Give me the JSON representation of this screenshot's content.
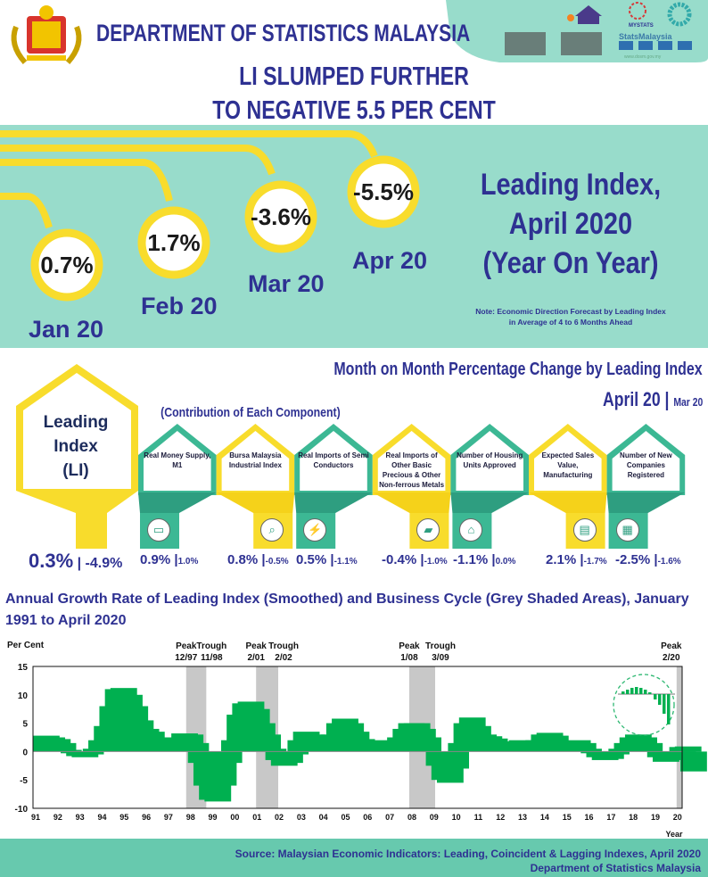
{
  "header": {
    "org": "DEPARTMENT OF STATISTICS MALAYSIA",
    "headline_1": "LI SLUMPED FURTHER",
    "headline_2": "TO NEGATIVE 5.5 PER CENT",
    "logos": [
      "malaysia-coat-of-arms",
      "census-2020",
      "mystats-day",
      "sdg",
      "statsmalaysia-social-media",
      "qr-codes"
    ],
    "website": "www.dosm.gov.my"
  },
  "yoy": {
    "title_lines": [
      "Leading Index,",
      "April 2020",
      "(Year On Year)"
    ],
    "note": "Note: Economic Direction Forecast by Leading Index in Average of 4 to 6 Months Ahead",
    "months": [
      {
        "label": "Jan 20",
        "value": "0.7%"
      },
      {
        "label": "Feb 20",
        "value": "1.7%"
      },
      {
        "label": "Mar 20",
        "value": "-3.6%"
      },
      {
        "label": "Apr 20",
        "value": "-5.5%"
      }
    ]
  },
  "mom": {
    "title": "Month on Month Percentage Change by Leading Index",
    "current": "April 20",
    "previous": "Mar 20",
    "contribution_label": "(Contribution of Each Component)",
    "li": {
      "label_lines": [
        "Leading",
        "Index",
        "(LI)"
      ],
      "current": "0.3%",
      "previous": "-4.9%"
    },
    "components": [
      {
        "label": "Real Money Supply, M1",
        "current": "0.9%",
        "previous": "1.0%",
        "icon": "wallet-icon",
        "color": "teal"
      },
      {
        "label": "Bursa Malaysia Industrial Index",
        "current": "0.8%",
        "previous": "-0.5%",
        "icon": "magnifier-chart-icon",
        "color": "yellow"
      },
      {
        "label": "Real Imports of Semi Conductors",
        "current": "0.5%",
        "previous": "-1.1%",
        "icon": "chip-icon",
        "color": "teal"
      },
      {
        "label": "Real Imports of Other Basic Precious & Other Non-ferrous Metals",
        "current": "-0.4%",
        "previous": "-1.0%",
        "icon": "metal-bar-icon",
        "color": "yellow"
      },
      {
        "label": "Number of Housing Units Approved",
        "current": "-1.1%",
        "previous": "0.0%",
        "icon": "house-icon",
        "color": "teal"
      },
      {
        "label": "Expected Sales Value, Manufacturing",
        "current": "2.1%",
        "previous": "-1.7%",
        "icon": "presentation-icon",
        "color": "yellow"
      },
      {
        "label": "Number of New Companies Registered",
        "current": "-2.5%",
        "previous": "-1.6%",
        "icon": "building-icon",
        "color": "teal"
      }
    ]
  },
  "chart_data": {
    "type": "bar",
    "title": "Annual Growth Rate of Leading Index (Smoothed) and Business Cycle (Grey Shaded Areas), January 1991 to April 2020",
    "ylabel": "Per Cent",
    "xlabel": "Year",
    "ylim": [
      -10,
      15
    ],
    "yticks": [
      15,
      10,
      5,
      0,
      -5,
      -10
    ],
    "xticks": [
      "91",
      "92",
      "93",
      "94",
      "95",
      "96",
      "97",
      "98",
      "99",
      "00",
      "01",
      "02",
      "03",
      "04",
      "05",
      "06",
      "07",
      "08",
      "09",
      "10",
      "11",
      "12",
      "13",
      "14",
      "15",
      "16",
      "17",
      "18",
      "19",
      "20"
    ],
    "grid": false,
    "frequency": "quarterly (approx. read from monthly bars)",
    "values_by_year": {
      "1991": [
        2.8,
        2.5,
        2.2,
        1.5
      ],
      "1992": [
        0.3,
        -0.3,
        -0.8,
        -1.0
      ],
      "1993": [
        -0.5,
        0.5,
        2.0,
        4.5
      ],
      "1994": [
        8.0,
        11.0,
        11.2,
        10.0
      ],
      "1995": [
        8.0,
        5.5,
        4.0,
        3.5
      ],
      "1996": [
        2.5,
        2.5,
        2.5,
        2.3
      ],
      "1997": [
        2.5,
        3.2,
        3.0,
        1.5
      ],
      "1998": [
        -2.0,
        -6.0,
        -8.5,
        -8.8
      ],
      "1999": [
        -6.0,
        -2.0,
        2.0,
        6.5
      ],
      "2000": [
        8.5,
        8.8,
        7.5,
        5.0
      ],
      "2001": [
        3.0,
        0.5,
        -1.5,
        -2.5
      ],
      "2002": [
        -2.0,
        -0.5,
        2.0,
        3.5
      ],
      "2003": [
        3.0,
        1.5,
        0.7,
        1.0
      ],
      "2004": [
        3.0,
        5.0,
        5.8,
        5.0
      ],
      "2005": [
        3.5,
        2.2,
        1.7,
        1.8
      ],
      "2006": [
        2.0,
        1.8,
        1.5,
        1.6
      ],
      "2007": [
        2.5,
        4.0,
        5.0,
        5.0
      ],
      "2008": [
        4.0,
        2.5,
        0.0,
        -2.5
      ],
      "2009": [
        -5.0,
        -5.5,
        -3.0,
        1.5
      ],
      "2010": [
        5.0,
        6.0,
        4.5,
        3.0
      ],
      "2011": [
        2.7,
        2.3,
        1.5,
        1.3
      ],
      "2012": [
        1.2,
        1.8,
        2.0,
        1.5
      ],
      "2013": [
        1.2,
        2.0,
        3.0,
        3.3
      ],
      "2014": [
        2.8,
        1.5,
        1.3,
        1.8
      ],
      "2015": [
        2.0,
        1.5,
        0.5,
        -0.3
      ],
      "2016": [
        -1.0,
        -1.5,
        -1.3,
        -0.5
      ],
      "2017": [
        0.5,
        1.5,
        2.5,
        3.0
      ],
      "2018": [
        2.5,
        1.5,
        0.0,
        -1.0
      ],
      "2019": [
        -1.8,
        -1.5,
        -0.5,
        0.8
      ],
      "2020": [
        0.9,
        -3.5
      ]
    },
    "bar_color": "#00b050",
    "recessions": [
      {
        "start": 1997.92,
        "end": 1998.83,
        "peak_label": "Peak",
        "peak_date": "12/97",
        "trough_label": "Trough",
        "trough_date": "11/98"
      },
      {
        "start": 2001.08,
        "end": 2002.08,
        "peak_label": "Peak",
        "peak_date": "2/01",
        "trough_label": "Trough",
        "trough_date": "2/02"
      },
      {
        "start": 2008.0,
        "end": 2009.17,
        "peak_label": "Peak",
        "peak_date": "1/08",
        "trough_label": "Trough",
        "trough_date": "3/09"
      },
      {
        "start": 2020.08,
        "end": 2020.33,
        "peak_label": "Peak",
        "peak_date": "2/20",
        "trough_label": "",
        "trough_date": ""
      }
    ],
    "shade_color": "#c8c8c8"
  },
  "footer": {
    "source": "Source:  Malaysian Economic Indicators: Leading, Coincident & Lagging Indexes, April 2020",
    "org": "Department of Statistics Malaysia"
  },
  "colors": {
    "navy": "#2e3192",
    "teal_band": "#98dccb",
    "yellow": "#f8dc2c",
    "green": "#3cb894",
    "dark_green": "#2e9e80",
    "footer": "#67c9ae"
  }
}
